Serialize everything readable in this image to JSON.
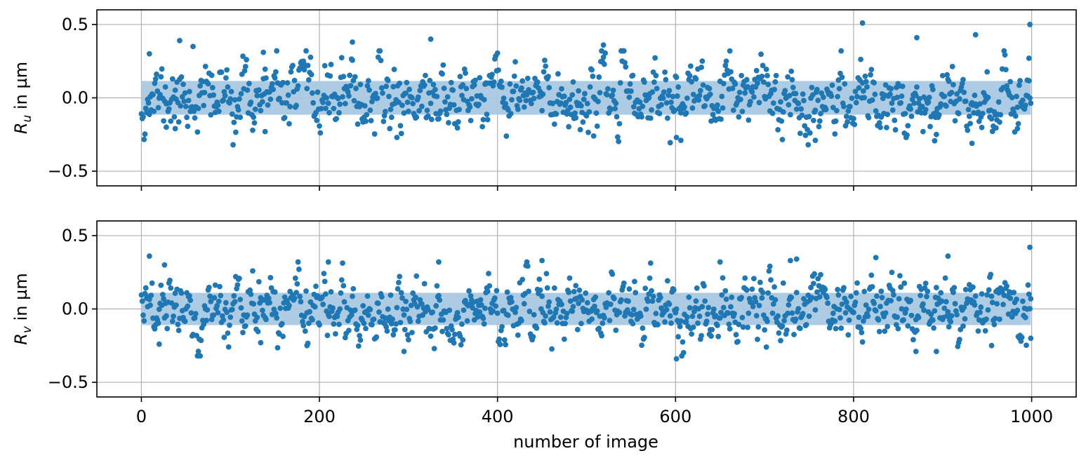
{
  "chart_data": [
    {
      "type": "scatter",
      "ylabel": {
        "symbol": "R",
        "subscript": "u",
        "suffix": " in µm"
      },
      "xlabel": "",
      "xlim": [
        -50,
        1050
      ],
      "ylim": [
        -0.6,
        0.6
      ],
      "xticks": [
        0,
        200,
        400,
        600,
        800,
        1000
      ],
      "yticks": [
        0.5,
        0.0,
        -0.5
      ],
      "ytick_labels": [
        "0.5",
        "0.0",
        "−0.5"
      ],
      "show_xtick_labels": false,
      "grid": true,
      "band": {
        "x_range": [
          0,
          999
        ],
        "y_range": [
          -0.115,
          0.115
        ],
        "color": "#a9c9e2"
      },
      "series": [
        {
          "color": "#1f77b4",
          "n_points": 1000,
          "x_range": [
            0,
            999
          ],
          "mean": 0.0,
          "std": 0.115,
          "seed": 11
        }
      ],
      "highlight_points": [
        {
          "x": 43,
          "y": 0.39
        },
        {
          "x": 58,
          "y": 0.35
        },
        {
          "x": 9,
          "y": 0.3
        },
        {
          "x": 137,
          "y": 0.31
        },
        {
          "x": 237,
          "y": 0.38
        },
        {
          "x": 325,
          "y": 0.4
        },
        {
          "x": 519,
          "y": 0.36
        },
        {
          "x": 810,
          "y": 0.51
        },
        {
          "x": 871,
          "y": 0.41
        },
        {
          "x": 937,
          "y": 0.43
        },
        {
          "x": 998,
          "y": 0.5
        },
        {
          "x": 997,
          "y": 0.27
        },
        {
          "x": 601,
          "y": -0.27
        },
        {
          "x": 606,
          "y": -0.29
        },
        {
          "x": 757,
          "y": -0.29
        },
        {
          "x": 933,
          "y": -0.31
        },
        {
          "x": 28,
          "y": -0.2
        },
        {
          "x": 38,
          "y": -0.21
        },
        {
          "x": 139,
          "y": -0.23
        },
        {
          "x": 287,
          "y": -0.27
        },
        {
          "x": 508,
          "y": -0.26
        },
        {
          "x": 893,
          "y": -0.25
        },
        {
          "x": 984,
          "y": -0.21
        }
      ]
    },
    {
      "type": "scatter",
      "ylabel": {
        "symbol": "R",
        "subscript": "v",
        "suffix": " in µm"
      },
      "xlabel": "number of image",
      "xlim": [
        -50,
        1050
      ],
      "ylim": [
        -0.6,
        0.6
      ],
      "xticks": [
        0,
        200,
        400,
        600,
        800,
        1000
      ],
      "xtick_labels": [
        "0",
        "200",
        "400",
        "600",
        "800",
        "1000"
      ],
      "yticks": [
        0.5,
        0.0,
        -0.5
      ],
      "ytick_labels": [
        "0.5",
        "0.0",
        "−0.5"
      ],
      "show_xtick_labels": true,
      "grid": true,
      "band": {
        "x_range": [
          0,
          999
        ],
        "y_range": [
          -0.11,
          0.11
        ],
        "color": "#a9c9e2"
      },
      "series": [
        {
          "color": "#1f77b4",
          "n_points": 1000,
          "x_range": [
            0,
            999
          ],
          "mean": 0.0,
          "std": 0.11,
          "seed": 29
        }
      ],
      "highlight_points": [
        {
          "x": 9,
          "y": 0.36
        },
        {
          "x": 26,
          "y": 0.3
        },
        {
          "x": 210,
          "y": 0.32
        },
        {
          "x": 334,
          "y": 0.32
        },
        {
          "x": 450,
          "y": 0.33
        },
        {
          "x": 650,
          "y": 0.32
        },
        {
          "x": 729,
          "y": 0.33
        },
        {
          "x": 736,
          "y": 0.34
        },
        {
          "x": 825,
          "y": 0.35
        },
        {
          "x": 906,
          "y": 0.36
        },
        {
          "x": 998,
          "y": 0.42
        },
        {
          "x": 601,
          "y": -0.34
        },
        {
          "x": 295,
          "y": -0.29
        },
        {
          "x": 870,
          "y": -0.29
        },
        {
          "x": 893,
          "y": -0.29
        },
        {
          "x": 702,
          "y": -0.26
        },
        {
          "x": 955,
          "y": -0.25
        },
        {
          "x": 186,
          "y": -0.25
        },
        {
          "x": 20,
          "y": -0.24
        },
        {
          "x": 134,
          "y": -0.23
        },
        {
          "x": 999,
          "y": -0.2
        }
      ]
    }
  ]
}
